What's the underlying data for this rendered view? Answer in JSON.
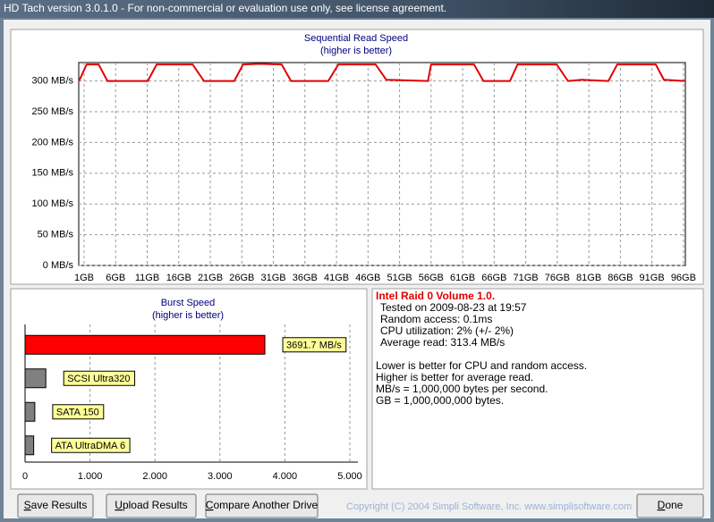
{
  "window": {
    "title": "HD Tach version 3.0.1.0  - For non-commercial or evaluation use only, see license agreement."
  },
  "chart_data": [
    {
      "type": "line",
      "title": "Sequential Read Speed",
      "subtitle": "(higher is better)",
      "color": "#e00000",
      "grid": true,
      "x": [
        0.2,
        1.4,
        3.3,
        4.7,
        11.1,
        12.5,
        18.2,
        20.0,
        24.8,
        26.2,
        28.8,
        32.3,
        33.8,
        39.7,
        41.3,
        47.2,
        48.9,
        55.5,
        56.0,
        62.8,
        64.3,
        68.5,
        69.7,
        75.9,
        77.7,
        79.9,
        82.0,
        84.1,
        85.5,
        91.6,
        92.9,
        96.3
      ],
      "values": [
        300,
        327,
        327,
        300,
        300,
        327,
        327,
        300,
        300,
        327,
        328,
        327,
        300,
        300,
        327,
        327,
        302,
        300,
        327,
        327,
        300,
        300,
        327,
        327,
        300,
        302,
        301,
        300,
        327,
        327,
        302,
        300
      ],
      "xlim": [
        0.15,
        96.3
      ],
      "xticks": [
        {
          "value": 1,
          "label": "1GB"
        },
        {
          "value": 6,
          "label": "6GB"
        },
        {
          "value": 11,
          "label": "11GB"
        },
        {
          "value": 16,
          "label": "16GB"
        },
        {
          "value": 21,
          "label": "21GB"
        },
        {
          "value": 26,
          "label": "26GB"
        },
        {
          "value": 31,
          "label": "31GB"
        },
        {
          "value": 36,
          "label": "36GB"
        },
        {
          "value": 41,
          "label": "41GB"
        },
        {
          "value": 46,
          "label": "46GB"
        },
        {
          "value": 51,
          "label": "51GB"
        },
        {
          "value": 56,
          "label": "56GB"
        },
        {
          "value": 61,
          "label": "61GB"
        },
        {
          "value": 66,
          "label": "66GB"
        },
        {
          "value": 71,
          "label": "71GB"
        },
        {
          "value": 76,
          "label": "76GB"
        },
        {
          "value": 81,
          "label": "81GB"
        },
        {
          "value": 86,
          "label": "86GB"
        },
        {
          "value": 91,
          "label": "91GB"
        },
        {
          "value": 96,
          "label": "96GB"
        }
      ],
      "ylim": [
        0,
        330
      ],
      "yticks": [
        {
          "value": 0,
          "label": "0 MB/s"
        },
        {
          "value": 50,
          "label": "50 MB/s"
        },
        {
          "value": 100,
          "label": "100 MB/s"
        },
        {
          "value": 150,
          "label": "150 MB/s"
        },
        {
          "value": 200,
          "label": "200 MB/s"
        },
        {
          "value": 250,
          "label": "250 MB/s"
        },
        {
          "value": 300,
          "label": "300 MB/s"
        }
      ]
    },
    {
      "type": "hbar",
      "title": "Burst Speed",
      "subtitle": "(higher is better)",
      "grid": true,
      "categories": [
        null,
        "SCSI Ultra320",
        "SATA 150",
        "ATA UltraDMA 6"
      ],
      "values": [
        3691.7,
        320,
        150,
        133
      ],
      "value_labels": [
        "3691.7 MB/s",
        null,
        null,
        null
      ],
      "colors": [
        "#ff0000",
        "#808080",
        "#808080",
        "#808080"
      ],
      "xlim": [
        0,
        5124
      ],
      "xticks": [
        0,
        {
          "value": 1000,
          "label": "1.000"
        },
        {
          "value": 2000,
          "label": "2.000"
        },
        {
          "value": 3000,
          "label": "3.000"
        },
        {
          "value": 4000,
          "label": "4.000"
        },
        {
          "value": 5000,
          "label": "5.000"
        }
      ]
    }
  ],
  "info": {
    "heading": "Intel Raid 0 Volume 1.0.",
    "lines": [
      "Tested on 2009-08-23 at 19:57",
      "Random access: 0.1ms",
      "CPU utilization: 2% (+/- 2%)",
      "Average read: 313.4 MB/s"
    ],
    "notes": [
      "Lower is better for CPU and random access.",
      "Higher is better for average read.",
      "MB/s = 1,000,000 bytes per second.",
      "GB = 1,000,000,000 bytes."
    ]
  },
  "buttons": [
    "Save Results",
    "Upload Results",
    "Compare Another Drive"
  ],
  "copyright": "Copyright (C) 2004 Simpli Software, Inc. www.simplisoftware.com",
  "done": "Done"
}
